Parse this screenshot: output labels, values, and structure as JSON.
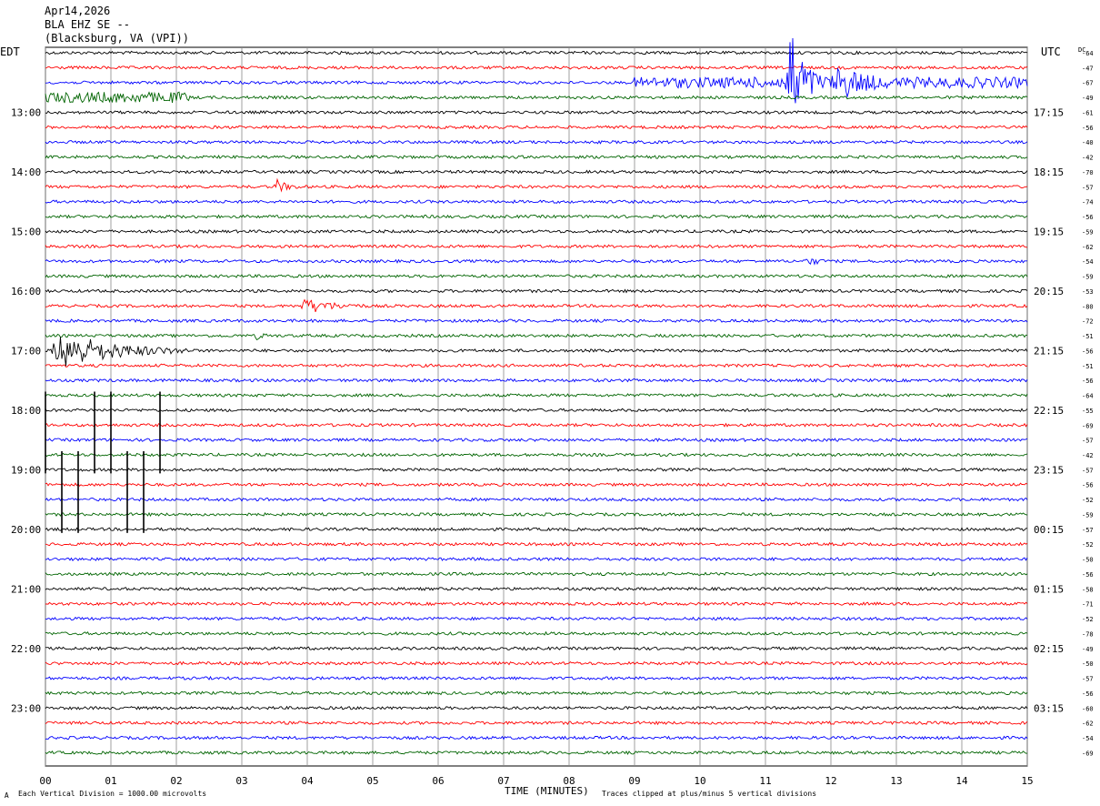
{
  "header": {
    "date": "Apr14,2026",
    "station": "BLA EHZ SE --",
    "location": "(Blacksburg, VA (VPI))"
  },
  "left_tz": "EDT",
  "right_tz": "UTC",
  "dc_header": "DC",
  "footer": {
    "scale_note": "Each Vertical Division = 1000.00 microvolts",
    "clip_note": "Traces clipped at plus/minus 5 vertical divisions",
    "corner_mark": " A"
  },
  "chart_data": {
    "type": "line",
    "title": "",
    "xlabel": "TIME (MINUTES)",
    "ylabel": "",
    "x_ticks": [
      "00",
      "01",
      "02",
      "03",
      "04",
      "05",
      "06",
      "07",
      "08",
      "09",
      "10",
      "11",
      "12",
      "13",
      "14",
      "15"
    ],
    "xlim": [
      0,
      15
    ],
    "grid": true,
    "line_colors": [
      "#000000",
      "#ff0000",
      "#0000ff",
      "#006400"
    ],
    "left_hour_labels": [
      {
        "row": 4,
        "label": "13:00"
      },
      {
        "row": 8,
        "label": "14:00"
      },
      {
        "row": 12,
        "label": "15:00"
      },
      {
        "row": 16,
        "label": "16:00"
      },
      {
        "row": 20,
        "label": "17:00"
      },
      {
        "row": 24,
        "label": "18:00"
      },
      {
        "row": 28,
        "label": "19:00"
      },
      {
        "row": 32,
        "label": "20:00"
      },
      {
        "row": 36,
        "label": "21:00"
      },
      {
        "row": 40,
        "label": "22:00"
      },
      {
        "row": 44,
        "label": "23:00"
      }
    ],
    "right_hour_labels": [
      {
        "row": 4,
        "label": "17:15"
      },
      {
        "row": 8,
        "label": "18:15"
      },
      {
        "row": 12,
        "label": "19:15"
      },
      {
        "row": 16,
        "label": "20:15"
      },
      {
        "row": 20,
        "label": "21:15"
      },
      {
        "row": 24,
        "label": "22:15"
      },
      {
        "row": 28,
        "label": "23:15"
      },
      {
        "row": 32,
        "label": "00:15"
      },
      {
        "row": 36,
        "label": "01:15"
      },
      {
        "row": 40,
        "label": "02:15"
      },
      {
        "row": 44,
        "label": "03:15"
      }
    ],
    "dc_offsets": [
      "-64",
      "-47",
      "-67",
      "-49",
      "-61",
      "-56",
      "-40",
      "-42",
      "-70",
      "-57",
      "-74",
      "-56",
      "-59",
      "-62",
      "-54",
      "-59",
      "-53",
      "-80",
      "-72",
      "-51",
      "-56",
      "-51",
      "-56",
      "-64",
      "-55",
      "-69",
      "-57",
      "-42",
      "-57",
      "-56",
      "-52",
      "-59",
      "-57",
      "-52",
      "-50",
      "-56",
      "-58",
      "-71",
      "-52",
      "-78",
      "-49",
      "-50",
      "-57",
      "-56",
      "-60",
      "-62",
      "-54",
      "-69"
    ],
    "events": [
      {
        "row": 2,
        "x_start": 9.0,
        "x_end": 15.0,
        "amp": 6,
        "color": "#0000ff",
        "kind": "noise"
      },
      {
        "row": 2,
        "x_start": 11.3,
        "x_end": 12.0,
        "amp": 80,
        "color": "#0000ff",
        "kind": "burst"
      },
      {
        "row": 2,
        "x_start": 12.0,
        "x_end": 13.5,
        "amp": 24,
        "color": "#0000ff",
        "kind": "burst"
      },
      {
        "row": 3,
        "x_start": 0.0,
        "x_end": 2.2,
        "amp": 6,
        "color": "#006400",
        "kind": "noise"
      },
      {
        "row": 9,
        "x_start": 3.5,
        "x_end": 3.9,
        "amp": 9,
        "color": "#ff0000",
        "kind": "burst"
      },
      {
        "row": 14,
        "x_start": 11.6,
        "x_end": 12.0,
        "amp": 6,
        "color": "#0000ff",
        "kind": "burst"
      },
      {
        "row": 17,
        "x_start": 3.9,
        "x_end": 4.9,
        "amp": 10,
        "color": "#ff0000",
        "kind": "burst"
      },
      {
        "row": 19,
        "x_start": 3.2,
        "x_end": 3.5,
        "amp": 4,
        "color": "#006400",
        "kind": "burst"
      },
      {
        "row": 20,
        "x_start": 0.1,
        "x_end": 2.2,
        "amp": 26,
        "color": "#000000",
        "kind": "burst"
      },
      {
        "row": 23,
        "x_start": 0.0,
        "x_end": 1.8,
        "amp": 1,
        "color": "#006400",
        "kind": "spikes"
      },
      {
        "row": 27,
        "x_start": 0.0,
        "x_end": 1.8,
        "amp": 1,
        "color": "#006400",
        "kind": "spikes"
      }
    ],
    "spike_marks": [
      {
        "x": 0.0,
        "row_from": 23,
        "row_to": 28
      },
      {
        "x": 0.25,
        "row_from": 27,
        "row_to": 32
      },
      {
        "x": 0.5,
        "row_from": 27,
        "row_to": 32
      },
      {
        "x": 0.75,
        "row_from": 23,
        "row_to": 28
      },
      {
        "x": 1.0,
        "row_from": 23,
        "row_to": 28
      },
      {
        "x": 1.25,
        "row_from": 27,
        "row_to": 32
      },
      {
        "x": 1.5,
        "row_from": 27,
        "row_to": 32
      },
      {
        "x": 1.75,
        "row_from": 23,
        "row_to": 28
      }
    ]
  }
}
